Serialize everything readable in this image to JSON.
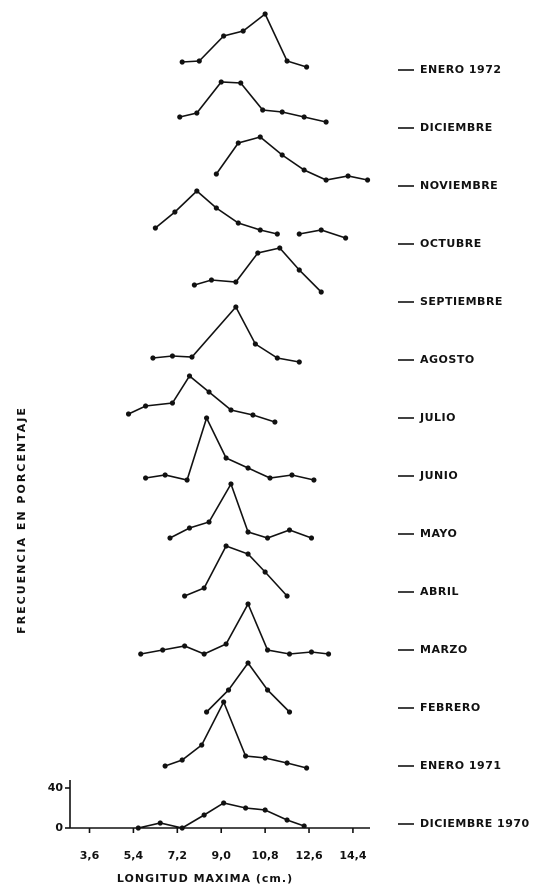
{
  "chart_data": {
    "type": "ridgeline",
    "x_label": "LONGITUD MAXIMA (cm.)",
    "y_label": "FRECUENCIA EN PORCENTAJE",
    "xlim": [
      2.8,
      15.1
    ],
    "xticks": [
      {
        "value": 3.6,
        "label": "3,6"
      },
      {
        "value": 5.4,
        "label": "5,4"
      },
      {
        "value": 7.2,
        "label": "7,2"
      },
      {
        "value": 9.0,
        "label": "9,0"
      },
      {
        "value": 10.8,
        "label": "10,8"
      },
      {
        "value": 12.6,
        "label": "12,6"
      },
      {
        "value": 14.4,
        "label": "14,4"
      }
    ],
    "ylim": [
      0,
      40
    ],
    "yticks": [
      0,
      40
    ],
    "color": "#111111",
    "series": [
      {
        "name": "ENERO 1972",
        "x": [
          7.4,
          8.1,
          9.1,
          9.9,
          10.8,
          11.7,
          12.5
        ],
        "values": [
          12,
          13,
          38,
          43,
          60,
          13,
          7
        ]
      },
      {
        "name": "DICIEMBRE",
        "x": [
          7.3,
          8.0,
          9.0,
          9.8,
          10.7,
          11.5,
          12.4,
          13.3
        ],
        "values": [
          15,
          19,
          50,
          49,
          22,
          20,
          15,
          10
        ]
      },
      {
        "name": "NOVIEMBRE",
        "x": [
          8.8,
          9.7,
          10.6,
          11.5,
          12.4,
          13.3,
          14.2,
          15.0
        ],
        "values": [
          16,
          47,
          53,
          35,
          20,
          10,
          14,
          10
        ]
      },
      {
        "name": "OCTUBRE",
        "x": [
          6.3,
          7.1,
          8.0,
          8.8,
          9.7,
          10.6,
          11.3,
          11.8,
          12.2,
          13.1,
          14.1
        ],
        "values": [
          20,
          36,
          57,
          40,
          25,
          18,
          14,
          null,
          14,
          18,
          10
        ]
      },
      {
        "name": "SEPTIEMBRE",
        "x": [
          7.9,
          8.6,
          9.6,
          10.5,
          11.4,
          12.2,
          13.1
        ],
        "values": [
          21,
          26,
          24,
          53,
          58,
          36,
          14
        ]
      },
      {
        "name": "AGOSTO",
        "x": [
          6.2,
          7.0,
          7.8,
          9.6,
          10.4,
          11.3,
          12.2
        ],
        "values": [
          6,
          8,
          7,
          57,
          20,
          6,
          2
        ]
      },
      {
        "name": "JULIO",
        "x": [
          5.2,
          5.9,
          7.0,
          7.7,
          8.5,
          9.4,
          10.3,
          11.2
        ],
        "values": [
          8,
          16,
          19,
          46,
          30,
          12,
          7,
          0
        ]
      },
      {
        "name": "JUNIO",
        "x": [
          5.9,
          6.7,
          7.6,
          8.4,
          9.2,
          10.1,
          11.0,
          11.9,
          12.8
        ],
        "values": [
          2,
          5,
          0,
          62,
          22,
          12,
          2,
          5,
          0
        ]
      },
      {
        "name": "MAYO",
        "x": [
          6.9,
          7.7,
          8.5,
          9.4,
          10.1,
          10.9,
          11.8,
          12.7
        ],
        "values": [
          0,
          10,
          16,
          54,
          6,
          0,
          8,
          0
        ]
      },
      {
        "name": "ABRIL",
        "x": [
          7.5,
          8.3,
          9.2,
          10.1,
          10.8,
          11.7
        ],
        "values": [
          0,
          8,
          50,
          42,
          24,
          0
        ]
      },
      {
        "name": "MARZO",
        "x": [
          5.7,
          6.6,
          7.5,
          8.3,
          9.2,
          10.1,
          10.9,
          11.8,
          12.7,
          13.4
        ],
        "values": [
          0,
          4,
          8,
          0,
          10,
          50,
          4,
          0,
          2,
          0
        ]
      },
      {
        "name": "FEBRERO",
        "x": [
          8.4,
          9.3,
          10.1,
          10.9,
          11.8
        ],
        "values": [
          0,
          22,
          49,
          22,
          0
        ]
      },
      {
        "name": "ENERO 1971",
        "x": [
          6.7,
          7.4,
          8.2,
          9.1,
          10.0,
          10.8,
          11.7,
          12.5
        ],
        "values": [
          4,
          10,
          25,
          68,
          14,
          12,
          7,
          2
        ]
      },
      {
        "name": "DICIEMBRE 1970",
        "x": [
          5.6,
          6.5,
          7.4,
          8.3,
          9.1,
          10.0,
          10.8,
          11.7,
          12.4
        ],
        "values": [
          0,
          5,
          0,
          13,
          25,
          20,
          18,
          8,
          2
        ]
      }
    ]
  }
}
